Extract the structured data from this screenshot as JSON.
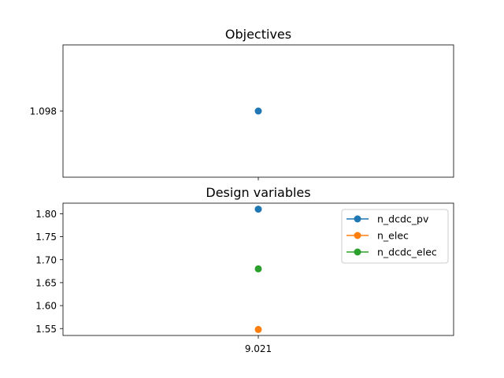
{
  "chart_data": [
    {
      "type": "scatter",
      "title": "Objectives",
      "x_ticks": [],
      "y_ticks": [
        "1.098"
      ],
      "xlim": [
        9.0,
        9.042
      ],
      "ylim": [
        1.0975,
        1.0985
      ],
      "grid": false,
      "series": [
        {
          "x": [
            9.021
          ],
          "values": [
            1.098
          ],
          "color": "#1f77b4"
        }
      ]
    },
    {
      "type": "line",
      "title": "Design variables",
      "x_ticks": [
        "9.021"
      ],
      "y_ticks": [
        "1.55",
        "1.60",
        "1.65",
        "1.70",
        "1.75",
        "1.80"
      ],
      "xlim": [
        9.0,
        9.042
      ],
      "ylim": [
        1.535,
        1.823
      ],
      "grid": false,
      "legend_position": "top-right",
      "series": [
        {
          "name": "n_dcdc_pv",
          "x": [
            9.021
          ],
          "values": [
            1.81
          ],
          "color": "#1f77b4"
        },
        {
          "name": "n_elec",
          "x": [
            9.021
          ],
          "values": [
            1.548
          ],
          "color": "#ff7f0e"
        },
        {
          "name": "n_dcdc_elec",
          "x": [
            9.021
          ],
          "values": [
            1.68
          ],
          "color": "#2ca02c"
        }
      ]
    }
  ]
}
